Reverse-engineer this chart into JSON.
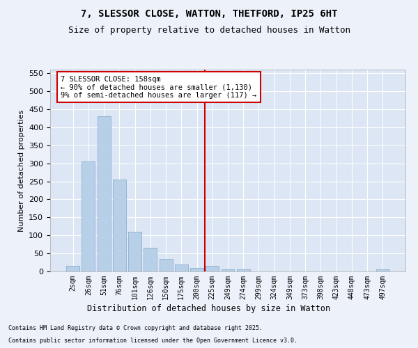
{
  "title_line1": "7, SLESSOR CLOSE, WATTON, THETFORD, IP25 6HT",
  "title_line2": "Size of property relative to detached houses in Watton",
  "xlabel": "Distribution of detached houses by size in Watton",
  "ylabel": "Number of detached properties",
  "categories": [
    "2sqm",
    "26sqm",
    "51sqm",
    "76sqm",
    "101sqm",
    "126sqm",
    "150sqm",
    "175sqm",
    "200sqm",
    "225sqm",
    "249sqm",
    "274sqm",
    "299sqm",
    "324sqm",
    "349sqm",
    "373sqm",
    "398sqm",
    "423sqm",
    "448sqm",
    "473sqm",
    "497sqm"
  ],
  "values": [
    15,
    305,
    430,
    255,
    110,
    65,
    35,
    20,
    10,
    15,
    5,
    5,
    0,
    0,
    0,
    0,
    0,
    0,
    0,
    0,
    5
  ],
  "bar_color": "#b8cfe8",
  "bar_edgecolor": "#8ab0d0",
  "plot_bg_color": "#dce6f4",
  "fig_bg_color": "#edf2fa",
  "grid_color": "#ffffff",
  "vline_color": "#cc0000",
  "vline_x": 8.5,
  "annotation_title": "7 SLESSOR CLOSE: 158sqm",
  "annotation_line2": "← 90% of detached houses are smaller (1,130)",
  "annotation_line3": "9% of semi-detached houses are larger (117) →",
  "annotation_box_edgecolor": "#cc0000",
  "ylim_min": 0,
  "ylim_max": 560,
  "yticks": [
    0,
    50,
    100,
    150,
    200,
    250,
    300,
    350,
    400,
    450,
    500,
    550
  ],
  "footnote1": "Contains HM Land Registry data © Crown copyright and database right 2025.",
  "footnote2": "Contains public sector information licensed under the Open Government Licence v3.0."
}
